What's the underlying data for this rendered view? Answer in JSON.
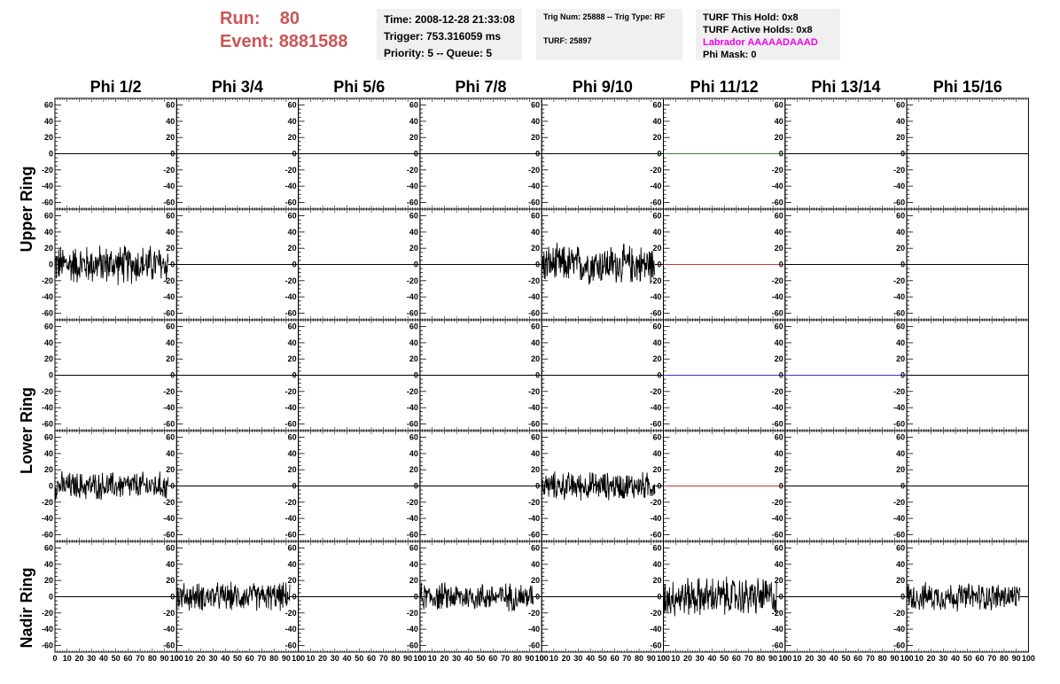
{
  "header": {
    "run_label": "Run:",
    "run_value": "80",
    "event_label": "Event:",
    "event_value": "8881588",
    "time": "Time: 2008-12-28 21:33:08",
    "trigger": "Trigger: 753.316059 ms",
    "priority": "Priority: 5 -- Queue: 5",
    "trig_num": "Trig Num: 25888 -- Trig Type: RF",
    "turf": "TURF: 25897",
    "turf_hold": "TURF This Hold: 0x8",
    "turf_active": "TURF Active Holds: 0x8",
    "labrador": "Labrador AAAAADAAAD",
    "phi_mask": "Phi Mask: 0",
    "labrador_color": "#ee00ee",
    "run_color": "#cc5555"
  },
  "chart_data": {
    "type": "line",
    "columns": [
      "Phi 1/2",
      "Phi 3/4",
      "Phi 5/6",
      "Phi 7/8",
      "Phi 9/10",
      "Phi 11/12",
      "Phi 13/14",
      "Phi 15/16"
    ],
    "ring_labels": [
      "Upper Ring",
      "Lower Ring",
      "Nadir Ring"
    ],
    "ylim": [
      -65,
      65
    ],
    "y_ticks": [
      -60,
      -40,
      -20,
      0,
      20,
      40,
      60
    ],
    "xlim": [
      0,
      100
    ],
    "x_tick_labels": [
      "0",
      "10",
      "20",
      "30",
      "40",
      "50",
      "60",
      "70",
      "80",
      "90",
      "100"
    ],
    "grid": false,
    "colors": {
      "default": "#000000",
      "green": "#2e8b2e",
      "red": "#cc3333",
      "blue": "#3333cc"
    },
    "rows": [
      [
        "flat",
        "flat",
        "flat",
        "flat",
        "flat",
        "flat-green",
        "flat",
        "flat"
      ],
      [
        "noise-large",
        "flat",
        "flat",
        "flat",
        "noise-large",
        "flat-red",
        "flat",
        "flat"
      ],
      [
        "flat",
        "flat",
        "flat",
        "flat",
        "flat",
        "flat-blue",
        "flat-blue",
        "flat"
      ],
      [
        "noise-medium",
        "flat",
        "flat",
        "flat",
        "noise-medium",
        "flat-red",
        "flat",
        "flat"
      ],
      [
        "flat",
        "noise-medium",
        "flat",
        "noise-medium",
        "flat",
        "noise-large",
        "flat",
        "noise-medium"
      ]
    ],
    "noise_amplitude": {
      "noise-large": 28,
      "noise-medium": 20
    }
  }
}
